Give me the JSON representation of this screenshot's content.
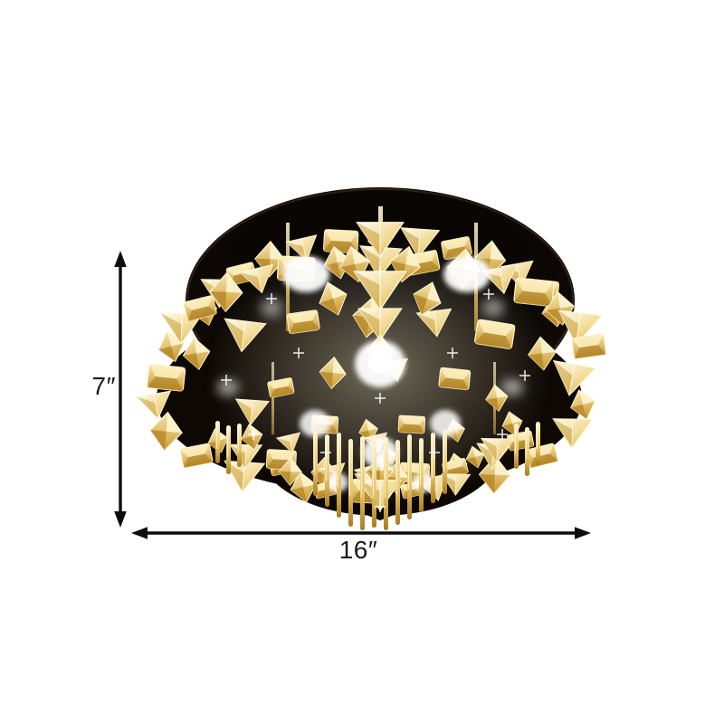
{
  "canvas": {
    "background": "#ffffff"
  },
  "product_image": {
    "subject": "Tiered crystal LED flush-mount ceiling light with dark chrome canopy, amber-lit crystal rings and hanging crystal rods",
    "palette": {
      "crystal_highlight": "#fffbe6",
      "crystal_gold": "#e9c765",
      "crystal_deep_gold": "#a87c1d",
      "metal_dark": "#0b0603",
      "glow_white": "#ffffff"
    }
  },
  "dimensions": {
    "height": {
      "label": "7″",
      "value": "7"
    },
    "width": {
      "label": "16″",
      "value": "16"
    },
    "arrow_color": "#0d0d0d",
    "label_color": "#1b1b1b"
  }
}
